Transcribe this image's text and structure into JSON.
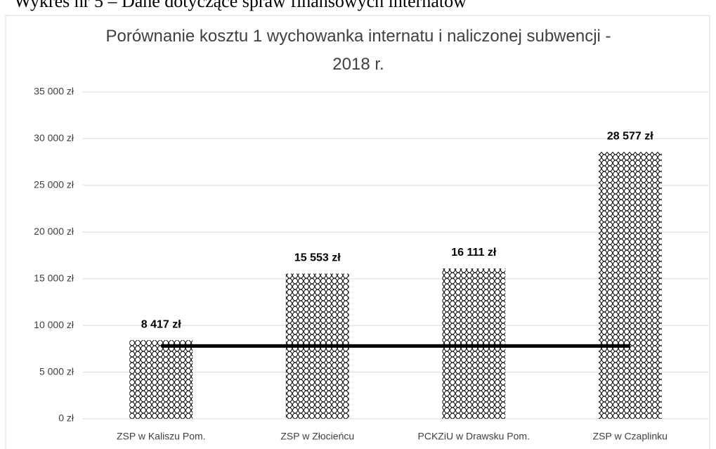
{
  "caption": "Wykres nr 5 – Dane dotyczące spraw finansowych internatów",
  "chart_data": {
    "type": "bar",
    "title": "Porównanie kosztu 1 wychowanka internatu i naliczonej subwencji - 2018 r.",
    "categories": [
      "ZSP w Kaliszu Pom.",
      "ZSP w Złocieńcu",
      "PCKZiU w Drawsku Pom.",
      "ZSP w Czaplinku"
    ],
    "values": [
      8417,
      15553,
      16111,
      28577
    ],
    "value_labels": [
      "8 417 zł",
      "15 553 zł",
      "16 111 zł",
      "28 577 zł"
    ],
    "color": "#000000",
    "line_series": {
      "color": "#000000",
      "values": [
        7800,
        7800,
        7800,
        7800
      ]
    },
    "ylim": [
      0,
      35000
    ],
    "yticks": [
      {
        "value": 0,
        "label": "0 zł"
      },
      {
        "value": 5000,
        "label": "5 000 zł"
      },
      {
        "value": 10000,
        "label": "10 000 zł"
      },
      {
        "value": 15000,
        "label": "15 000 zł"
      },
      {
        "value": 20000,
        "label": "20 000 zł"
      },
      {
        "value": 25000,
        "label": "25 000 zł"
      },
      {
        "value": 30000,
        "label": "30 000 zł"
      },
      {
        "value": 35000,
        "label": "35 000 zł"
      }
    ],
    "grid": true
  }
}
